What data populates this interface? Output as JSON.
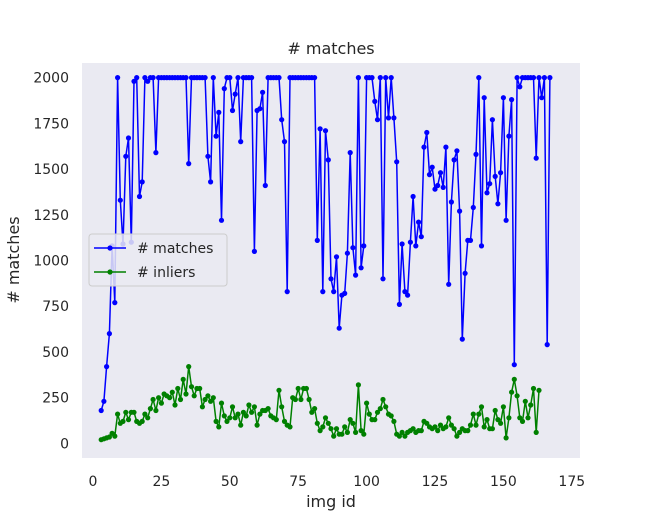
{
  "chart_data": {
    "type": "line",
    "title": "# matches",
    "xlabel": "img id",
    "ylabel": "# matches",
    "xlim": [
      -4,
      178
    ],
    "ylim": [
      -80,
      2080
    ],
    "xticks": [
      0,
      25,
      50,
      75,
      100,
      125,
      150,
      175
    ],
    "yticks": [
      0,
      250,
      500,
      750,
      1000,
      1250,
      1500,
      1750,
      2000
    ],
    "grid": false,
    "legend_position": "center-left",
    "x_start": 3,
    "series": [
      {
        "name": "# matches",
        "color": "#0000ff",
        "values": [
          180,
          230,
          420,
          600,
          1080,
          770,
          2000,
          1330,
          1090,
          1570,
          1670,
          1100,
          1980,
          2000,
          1350,
          1430,
          2000,
          1980,
          2000,
          2000,
          1590,
          2000,
          2000,
          2000,
          2000,
          2000,
          2000,
          2000,
          2000,
          2000,
          2000,
          2000,
          1530,
          2000,
          2000,
          2000,
          2000,
          2000,
          2000,
          1570,
          1430,
          2000,
          1680,
          1810,
          1220,
          1940,
          2000,
          2000,
          1820,
          1910,
          2000,
          1650,
          2000,
          2000,
          2000,
          2000,
          1050,
          1820,
          1830,
          1920,
          1410,
          2000,
          2000,
          2000,
          2000,
          2000,
          1770,
          1650,
          830,
          2000,
          2000,
          2000,
          2000,
          2000,
          2000,
          2000,
          2000,
          2000,
          2000,
          1110,
          1720,
          830,
          1710,
          1550,
          900,
          830,
          1020,
          630,
          810,
          820,
          1040,
          1590,
          1070,
          920,
          2000,
          960,
          1080,
          2000,
          2000,
          2000,
          1870,
          1770,
          2000,
          900,
          2000,
          1780,
          2000,
          1780,
          1540,
          760,
          1090,
          830,
          810,
          1100,
          1350,
          1080,
          1210,
          1130,
          1620,
          1700,
          1470,
          1510,
          1390,
          1410,
          1480,
          1400,
          1620,
          870,
          1320,
          1550,
          1600,
          1270,
          570,
          930,
          1110,
          1110,
          1290,
          1580,
          2000,
          1080,
          1890,
          1370,
          1420,
          1770,
          1460,
          1310,
          1480,
          1890,
          1220,
          1680,
          1880,
          430,
          2000,
          1950,
          2000,
          2000,
          2000,
          2000,
          2000,
          1560,
          2000,
          1890,
          2000,
          540,
          2000
        ]
      },
      {
        "name": "# inliers",
        "color": "#008000",
        "values": [
          20,
          25,
          30,
          35,
          55,
          40,
          160,
          110,
          120,
          170,
          130,
          170,
          170,
          120,
          110,
          120,
          160,
          140,
          190,
          240,
          180,
          250,
          220,
          270,
          260,
          250,
          280,
          210,
          300,
          240,
          350,
          270,
          420,
          310,
          260,
          300,
          300,
          200,
          240,
          260,
          230,
          250,
          120,
          90,
          220,
          150,
          120,
          140,
          200,
          140,
          160,
          100,
          170,
          150,
          210,
          170,
          200,
          100,
          160,
          180,
          180,
          190,
          150,
          140,
          130,
          290,
          200,
          120,
          100,
          90,
          250,
          240,
          300,
          240,
          300,
          300,
          240,
          170,
          190,
          110,
          70,
          90,
          140,
          110,
          80,
          40,
          80,
          50,
          50,
          90,
          60,
          130,
          110,
          60,
          320,
          70,
          50,
          220,
          160,
          130,
          130,
          170,
          190,
          240,
          200,
          160,
          150,
          120,
          50,
          40,
          60,
          40,
          60,
          70,
          80,
          60,
          70,
          70,
          120,
          110,
          90,
          80,
          90,
          70,
          100,
          80,
          90,
          140,
          100,
          80,
          40,
          60,
          80,
          70,
          70,
          100,
          160,
          100,
          160,
          200,
          90,
          130,
          80,
          80,
          180,
          130,
          110,
          200,
          30,
          140,
          280,
          350,
          260,
          140,
          120,
          230,
          140,
          210,
          300,
          60,
          290
        ]
      }
    ]
  }
}
